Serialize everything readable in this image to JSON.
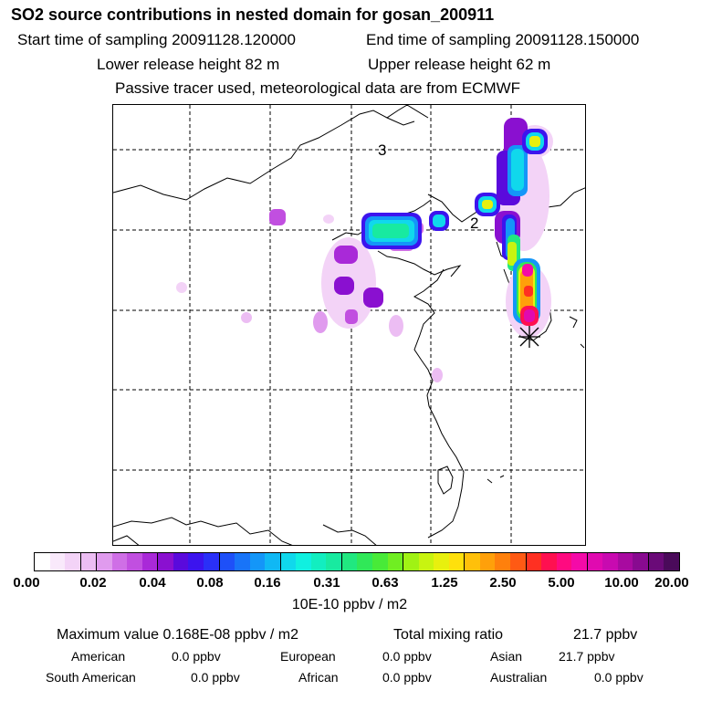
{
  "header": {
    "title": "SO2 source contributions in nested domain for gosan_200911",
    "start_label": "Start time of sampling 20091128.120000",
    "end_label": "End time of sampling 20091128.150000",
    "lower_label": "Lower release height   82 m",
    "upper_label": "Upper release height   62 m",
    "note": "Passive tracer used, meteorological data are from ECMWF"
  },
  "map": {
    "labels": [
      "3",
      "2"
    ],
    "receptor_marker": "asterisk-icon"
  },
  "colorbar": {
    "ticks": [
      "0.00",
      "0.02",
      "0.04",
      "0.08",
      "0.16",
      "0.31",
      "0.63",
      "1.25",
      "2.50",
      "5.00",
      "10.00",
      "20.00"
    ],
    "unit": "10E-10 ppbv / m2",
    "colors": [
      "#ffffff",
      "#f9e9fb",
      "#f3d3f7",
      "#ecbdf3",
      "#e09bee",
      "#cf6fe6",
      "#c14fe0",
      "#a929d8",
      "#8a10d0",
      "#5a0adc",
      "#3c14ee",
      "#2a30f8",
      "#1e50f8",
      "#1874f8",
      "#1496f8",
      "#10b8f4",
      "#10d8ec",
      "#10f0e0",
      "#12eec0",
      "#18eaa0",
      "#20e880",
      "#30e858",
      "#48ea38",
      "#70ee22",
      "#a0f214",
      "#c8f410",
      "#e8f00e",
      "#ffe00c",
      "#ffc00a",
      "#ffa00a",
      "#ff800c",
      "#ff5a14",
      "#ff3022",
      "#ff1050",
      "#ff0a80",
      "#f40aa8",
      "#e00ab0",
      "#c80ab0",
      "#a80aa0",
      "#880a90",
      "#6a0a78",
      "#4a0a5a"
    ]
  },
  "stats": {
    "max_label": "Maximum value  0.168E-08 ppbv / m2",
    "total_label": "Total mixing ratio",
    "total_value": "21.7 ppbv",
    "regions": [
      {
        "name": "American",
        "value": "0.0 ppbv"
      },
      {
        "name": "European",
        "value": "0.0 ppbv"
      },
      {
        "name": "Asian",
        "value": "21.7 ppbv"
      },
      {
        "name": "South American",
        "value": "0.0 ppbv"
      },
      {
        "name": "African",
        "value": "0.0 ppbv"
      },
      {
        "name": "Australian",
        "value": "0.0 ppbv"
      }
    ]
  }
}
